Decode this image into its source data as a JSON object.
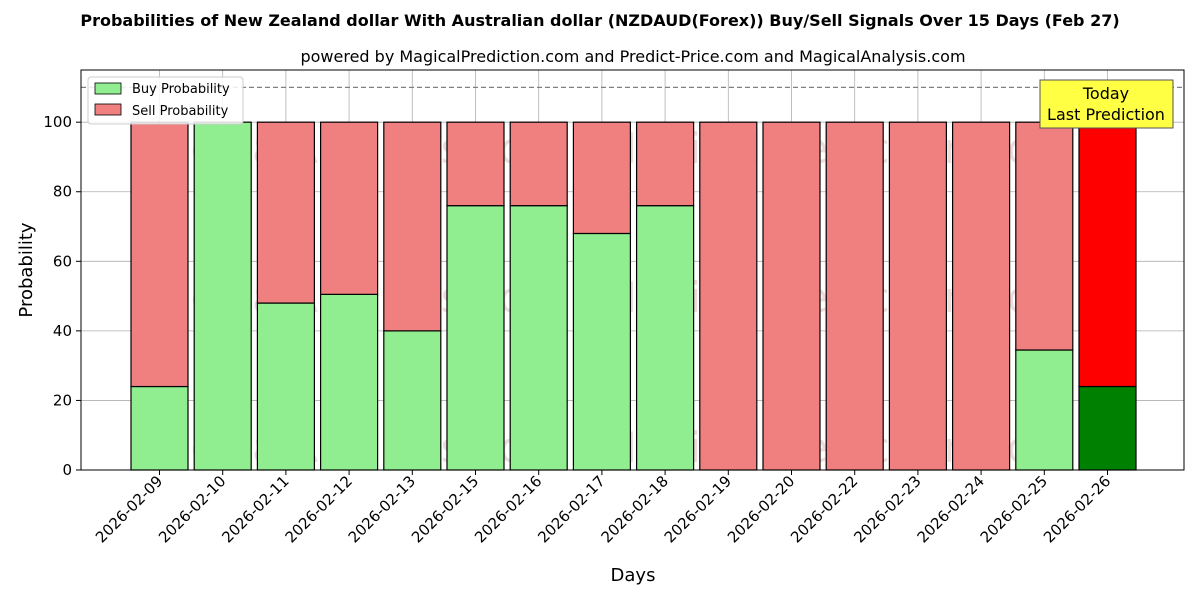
{
  "chart_data": {
    "type": "bar",
    "stacked": true,
    "title": "Probabilities of New Zealand dollar With Australian dollar (NZDAUD(Forex)) Buy/Sell Signals Over 15 Days (Feb 27)",
    "subtitle": "powered by MagicalPrediction.com and Predict-Price.com and MagicalAnalysis.com",
    "xlabel": "Days",
    "ylabel": "Probability",
    "ylim": [
      0,
      115
    ],
    "yticks": [
      0,
      20,
      40,
      60,
      80,
      100
    ],
    "grid": true,
    "legend_position": "top-left",
    "reference_line": 110,
    "categories": [
      "2026-02-09",
      "2026-02-10",
      "2026-02-11",
      "2026-02-12",
      "2026-02-13",
      "2026-02-15",
      "2026-02-16",
      "2026-02-17",
      "2026-02-18",
      "2026-02-19",
      "2026-02-20",
      "2026-02-22",
      "2026-02-23",
      "2026-02-24",
      "2026-02-25",
      "2026-02-26"
    ],
    "series": [
      {
        "name": "Buy Probability",
        "color": "#90ee90",
        "highlight_color": "#008000",
        "values": [
          24,
          100,
          48,
          50.5,
          40,
          76,
          76,
          68,
          76,
          0,
          0,
          0,
          0,
          0,
          34.5,
          24
        ]
      },
      {
        "name": "Sell Probability",
        "color": "#f08080",
        "highlight_color": "#ff0000",
        "values": [
          76,
          0,
          52,
          49.5,
          60,
          24,
          24,
          32,
          24,
          100,
          100,
          100,
          100,
          100,
          65.5,
          76
        ]
      }
    ],
    "annotation": {
      "lines": [
        "Today",
        "Last Prediction"
      ],
      "background": "#ffff44"
    },
    "watermarks": [
      "MagicalAnalysis.com",
      "MagicalPrediction.com"
    ]
  }
}
